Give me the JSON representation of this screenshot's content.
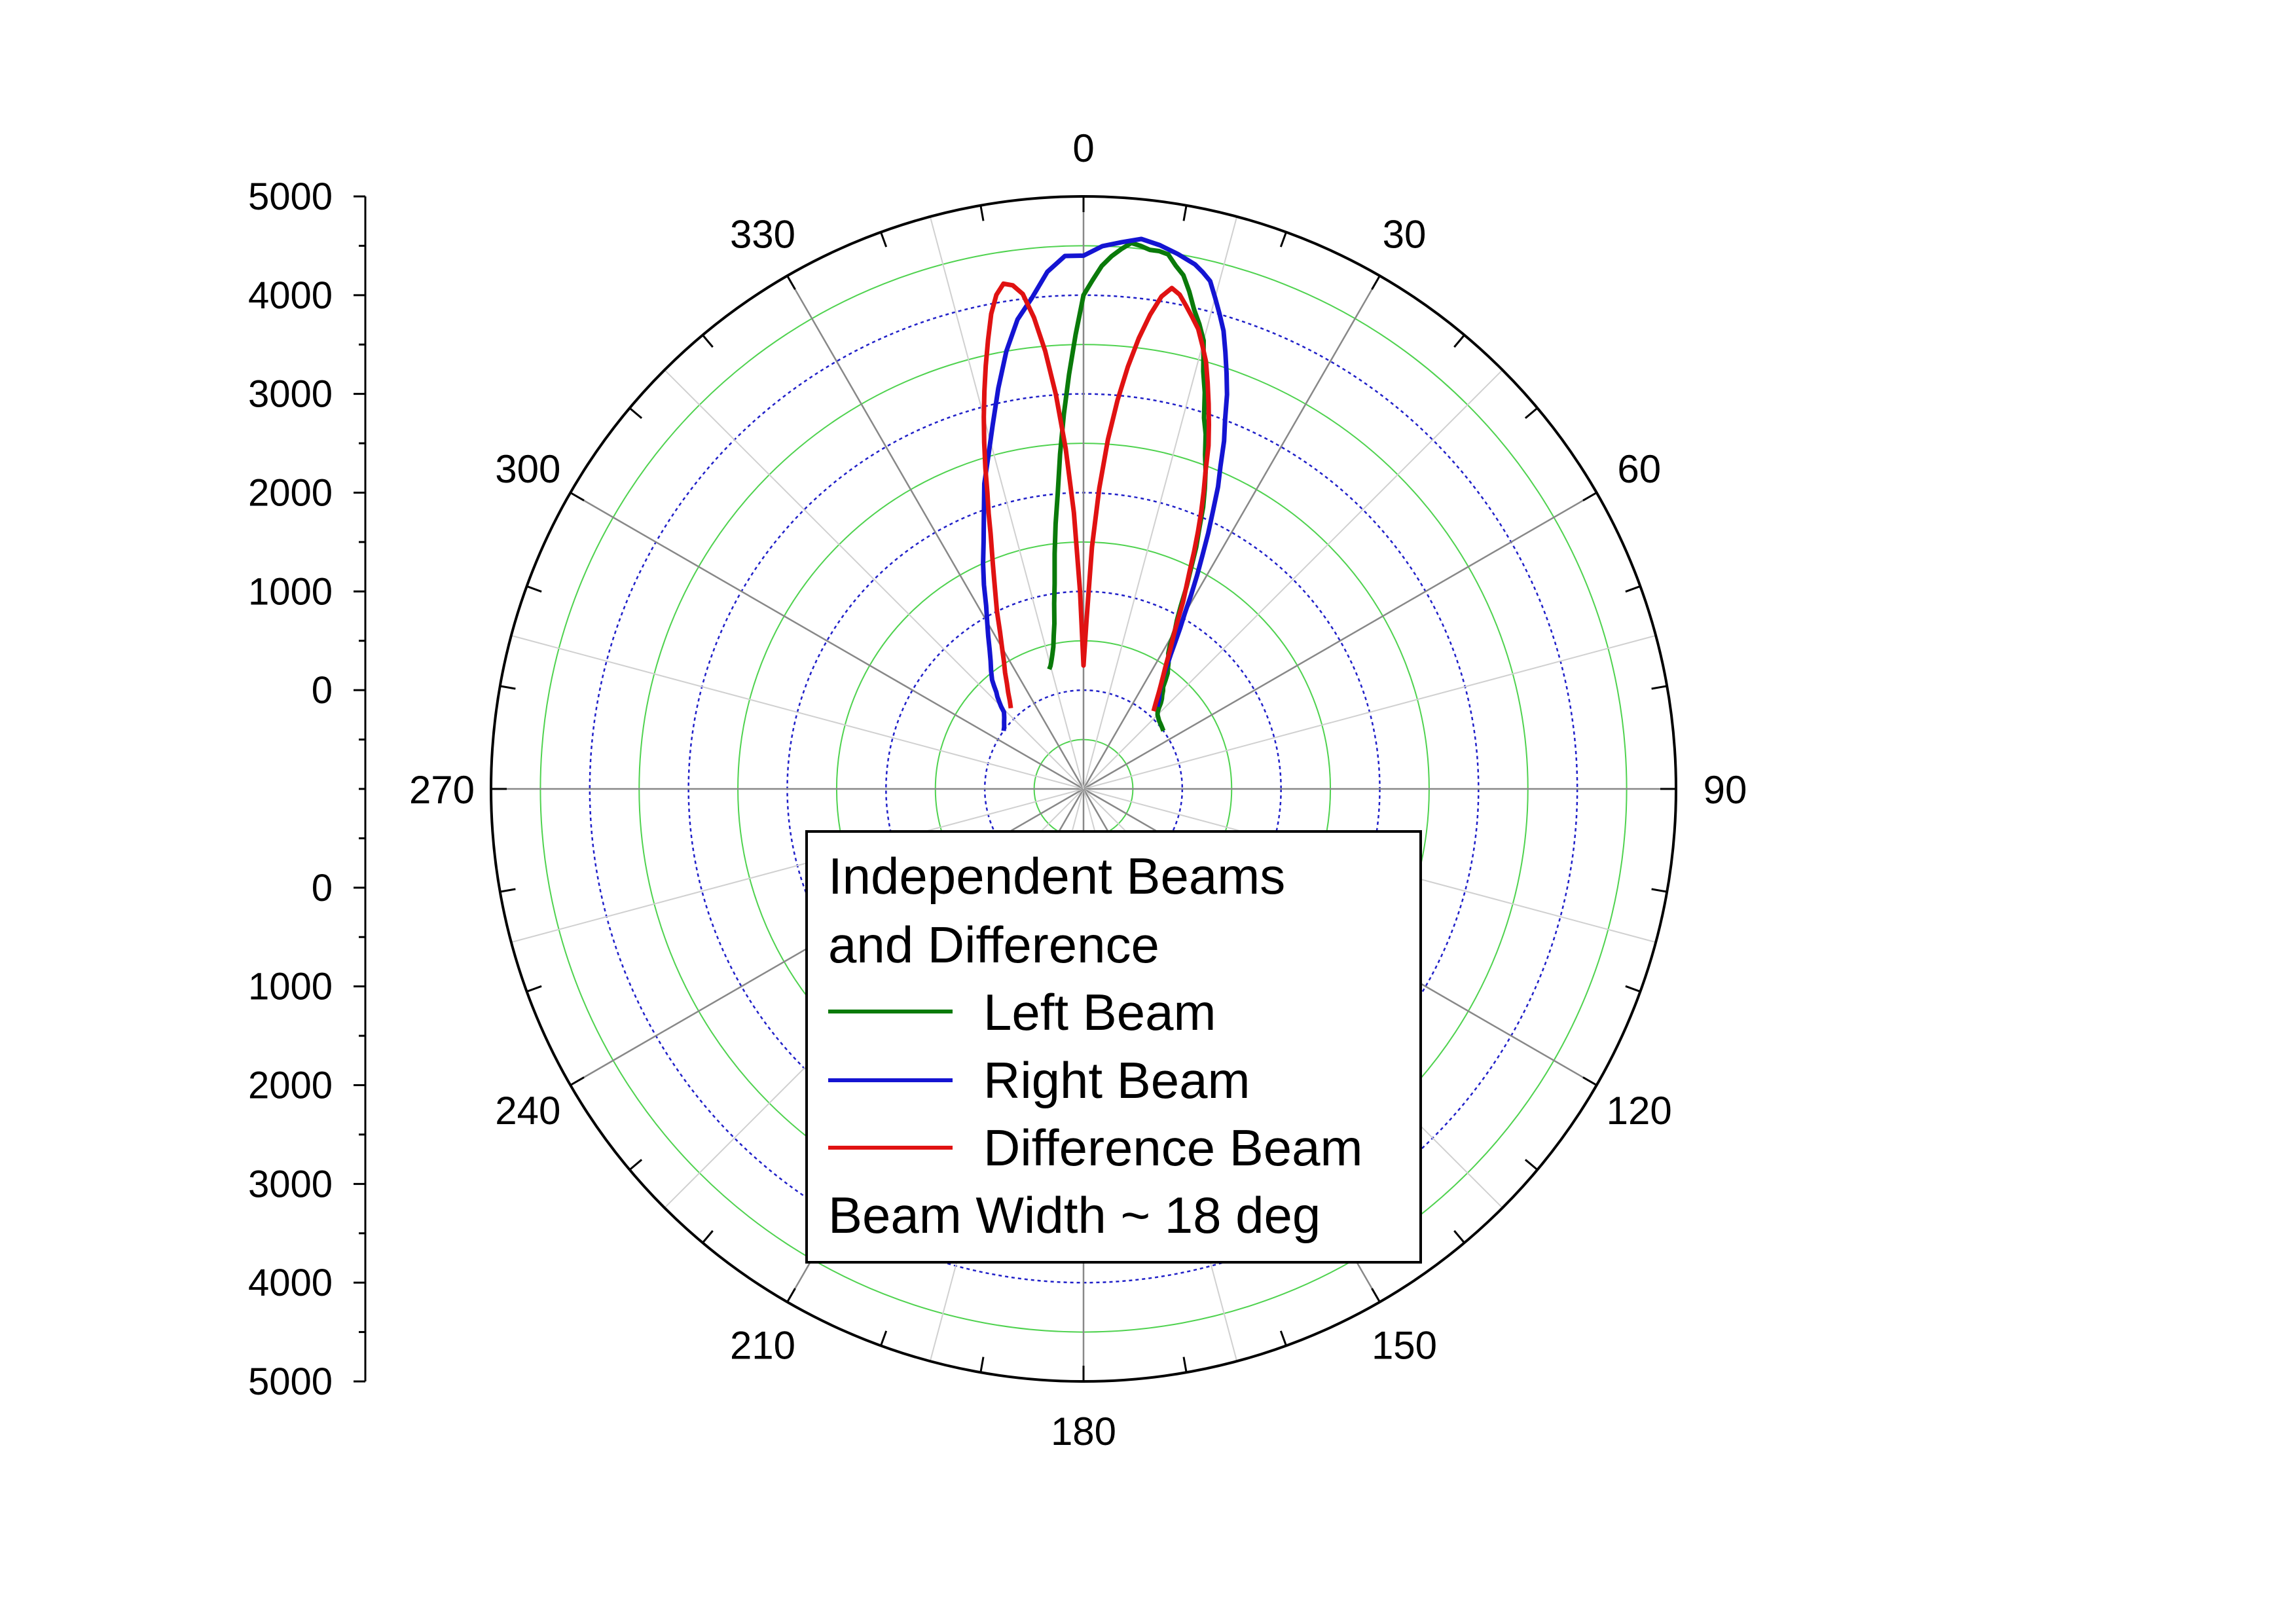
{
  "chart_data": {
    "type": "polar-line",
    "title": "",
    "angular_axis": {
      "direction": "clockwise",
      "zero_at": "top",
      "unit": "deg",
      "tick_labels": [
        "0",
        "30",
        "60",
        "90",
        "120",
        "150",
        "180",
        "210",
        "240",
        "270",
        "300",
        "330"
      ]
    },
    "radial_axis": {
      "range": [
        -1000,
        5000
      ],
      "tick_labels_upper": [
        "5000",
        "4000",
        "3000",
        "2000",
        "1000",
        "0"
      ],
      "tick_labels_lower": [
        "0",
        "1000",
        "2000",
        "3000",
        "4000",
        "5000"
      ],
      "major_grid_color": "#2020c8",
      "minor_grid_color": "#4fd24f"
    },
    "legend": {
      "placement": "lower-center",
      "title_line1": "Independent Beams",
      "title_line2": "and Difference",
      "footer": "Beam Width ~ 18 deg"
    },
    "series": [
      {
        "name": "Left Beam",
        "color": "#0a7a0a",
        "theta": [
          -16,
          -15,
          -14,
          -13,
          -12,
          -11,
          -10,
          -9,
          -8,
          -7,
          -6,
          -5,
          -4,
          -3,
          -2,
          -1,
          0,
          1,
          2,
          3,
          4,
          5,
          6,
          7,
          8,
          9,
          10,
          11,
          12,
          13,
          14,
          15,
          16,
          17,
          18,
          19,
          20,
          21,
          22,
          23,
          24,
          25,
          26,
          27,
          28,
          29,
          30,
          31,
          32,
          33,
          34,
          35,
          36,
          37,
          38,
          39,
          40,
          41,
          42,
          43,
          44,
          45,
          46,
          48,
          50,
          52,
          54
        ],
        "r": [
          260,
          290,
          340,
          400,
          470,
          580,
          700,
          900,
          1100,
          1400,
          1700,
          2000,
          2400,
          2800,
          3200,
          3600,
          4000,
          4150,
          4300,
          4400,
          4480,
          4550,
          4530,
          4500,
          4500,
          4480,
          4380,
          4300,
          4150,
          3980,
          3850,
          3700,
          3400,
          3200,
          2950,
          2800,
          2600,
          2450,
          2280,
          2100,
          1880,
          1700,
          1480,
          1300,
          1100,
          950,
          850,
          700,
          620,
          580,
          540,
          490,
          450,
          380,
          310,
          280,
          240,
          210,
          170,
          120,
          80,
          60,
          50,
          30,
          20,
          10,
          0
        ]
      },
      {
        "name": "Right Beam",
        "color": "#1414d2",
        "theta": [
          -54,
          -52,
          -50,
          -48,
          -46,
          -45,
          -44,
          -43,
          -42,
          -41,
          -40,
          -38,
          -36,
          -34,
          -32,
          -30,
          -28,
          -26,
          -24,
          -22,
          -20,
          -18,
          -16,
          -14,
          -12,
          -10,
          -8,
          -6,
          -4,
          -2,
          0,
          2,
          4,
          6,
          8,
          10,
          12,
          13,
          14,
          15,
          16,
          17,
          18,
          19,
          20,
          21,
          22,
          23,
          24,
          25,
          26,
          27,
          28,
          29,
          30,
          31,
          32,
          33,
          34,
          35,
          36,
          37,
          38,
          39,
          40,
          41,
          42
        ],
        "r": [
          0,
          20,
          50,
          80,
          120,
          180,
          230,
          280,
          320,
          380,
          440,
          520,
          600,
          700,
          820,
          950,
          1100,
          1300,
          1500,
          1700,
          1950,
          2250,
          2500,
          2800,
          3150,
          3500,
          3800,
          4000,
          4250,
          4400,
          4400,
          4500,
          4550,
          4600,
          4560,
          4500,
          4430,
          4370,
          4300,
          4150,
          4000,
          3850,
          3650,
          3450,
          3250,
          3000,
          2800,
          2550,
          2350,
          2100,
          1880,
          1650,
          1450,
          1250,
          1050,
          900,
          750,
          620,
          520,
          420,
          350,
          300,
          250,
          220,
          190,
          150,
          120
        ]
      },
      {
        "name": "Difference Beam",
        "color": "#e01212",
        "theta": [
          -42,
          -40,
          -38,
          -36,
          -34,
          -32,
          -30,
          -28,
          -26,
          -24,
          -22,
          -20,
          -19,
          -18,
          -17,
          -16,
          -15,
          -14,
          -13,
          -12,
          -11,
          -10,
          -9,
          -8,
          -7,
          -6,
          -5,
          -4,
          -3,
          -2,
          -1,
          0,
          1,
          2,
          3,
          4,
          5,
          6,
          7,
          8,
          9,
          10,
          11,
          12,
          13,
          14,
          15,
          16,
          17,
          18,
          19,
          20,
          21,
          22,
          23,
          24,
          25,
          26,
          28,
          30,
          32,
          34,
          36,
          38,
          40,
          42
        ],
        "r": [
          100,
          160,
          240,
          320,
          420,
          520,
          650,
          800,
          1000,
          1200,
          1450,
          1750,
          1950,
          2150,
          2400,
          2650,
          2900,
          3150,
          3400,
          3650,
          3900,
          4080,
          4180,
          4150,
          4050,
          3800,
          3450,
          3000,
          2450,
          1800,
          1000,
          250,
          700,
          1450,
          2050,
          2550,
          2950,
          3300,
          3600,
          3850,
          4050,
          4150,
          4100,
          4000,
          3900,
          3800,
          3650,
          3500,
          3300,
          3100,
          2900,
          2700,
          2450,
          2250,
          2050,
          1850,
          1650,
          1450,
          1150,
          850,
          650,
          480,
          350,
          240,
          140,
          60
        ]
      }
    ]
  }
}
